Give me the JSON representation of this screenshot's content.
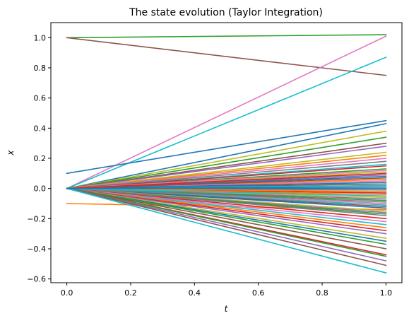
{
  "chart_data": {
    "type": "line",
    "title": "The state evolution (Taylor Integration)",
    "xlabel": "t",
    "ylabel": "x",
    "xlim": [
      -0.05,
      1.05
    ],
    "ylim": [
      -0.625,
      1.1
    ],
    "xticks": [
      {
        "value": 0.0,
        "label": "0.0"
      },
      {
        "value": 0.2,
        "label": "0.2"
      },
      {
        "value": 0.4,
        "label": "0.4"
      },
      {
        "value": 0.6,
        "label": "0.6"
      },
      {
        "value": 0.8,
        "label": "0.8"
      },
      {
        "value": 1.0,
        "label": "1.0"
      }
    ],
    "yticks": [
      {
        "value": -0.6,
        "label": "−0.6"
      },
      {
        "value": -0.4,
        "label": "−0.4"
      },
      {
        "value": -0.2,
        "label": "−0.2"
      },
      {
        "value": 0.0,
        "label": "0.0"
      },
      {
        "value": 0.2,
        "label": "0.2"
      },
      {
        "value": 0.4,
        "label": "0.4"
      },
      {
        "value": 0.6,
        "label": "0.6"
      },
      {
        "value": 0.8,
        "label": "0.8"
      },
      {
        "value": 1.0,
        "label": "1.0"
      }
    ],
    "grid": false,
    "legend": "none",
    "colors": [
      "#1f77b4",
      "#ff7f0e",
      "#2ca02c",
      "#d62728",
      "#9467bd",
      "#8c564b",
      "#e377c2",
      "#7f7f7f",
      "#bcbd22",
      "#17becf"
    ],
    "x": [
      0.0,
      1.0
    ],
    "series": [
      {
        "color": "#2ca02c",
        "values": [
          1.0,
          1.02
        ]
      },
      {
        "color": "#8c564b",
        "values": [
          1.0,
          0.75
        ]
      },
      {
        "color": "#e377c2",
        "values": [
          0.0,
          1.01
        ]
      },
      {
        "color": "#17becf",
        "values": [
          0.0,
          0.87
        ]
      },
      {
        "color": "#1f77b4",
        "values": [
          0.1,
          0.45
        ]
      },
      {
        "color": "#1f77b4",
        "values": [
          0.0,
          0.43
        ]
      },
      {
        "color": "#bcbd22",
        "values": [
          0.0,
          0.38
        ]
      },
      {
        "color": "#2ca02c",
        "values": [
          0.0,
          0.34
        ]
      },
      {
        "color": "#8c564b",
        "values": [
          0.0,
          0.3
        ]
      },
      {
        "color": "#9467bd",
        "values": [
          0.0,
          0.28
        ]
      },
      {
        "color": "#bcbd22",
        "values": [
          0.0,
          0.24
        ]
      },
      {
        "color": "#ff7f0e",
        "values": [
          0.0,
          0.22
        ]
      },
      {
        "color": "#e377c2",
        "values": [
          0.0,
          0.2
        ]
      },
      {
        "color": "#7f7f7f",
        "values": [
          0.0,
          0.18
        ]
      },
      {
        "color": "#17becf",
        "values": [
          0.0,
          0.16
        ]
      },
      {
        "color": "#d62728",
        "values": [
          0.0,
          0.15
        ]
      },
      {
        "color": "#2ca02c",
        "values": [
          0.0,
          0.13
        ]
      },
      {
        "color": "#bcbd22",
        "values": [
          0.0,
          0.11
        ]
      },
      {
        "color": "#9467bd",
        "values": [
          0.0,
          0.09
        ]
      },
      {
        "color": "#1f77b4",
        "values": [
          0.0,
          0.08
        ]
      },
      {
        "color": "#ff7f0e",
        "values": [
          0.0,
          0.06
        ]
      },
      {
        "color": "#e377c2",
        "values": [
          0.0,
          0.05
        ]
      },
      {
        "color": "#8c564b",
        "values": [
          0.0,
          0.03
        ]
      },
      {
        "color": "#17becf",
        "values": [
          0.0,
          0.02
        ]
      },
      {
        "color": "#1f77b4",
        "values": [
          0.0,
          0.01
        ]
      },
      {
        "color": "#2ca02c",
        "values": [
          0.0,
          0.0
        ]
      },
      {
        "color": "#7f7f7f",
        "values": [
          0.0,
          -0.01
        ]
      },
      {
        "color": "#d62728",
        "values": [
          0.0,
          -0.03
        ]
      },
      {
        "color": "#ff7f0e",
        "values": [
          0.0,
          -0.04
        ]
      },
      {
        "color": "#bcbd22",
        "values": [
          0.0,
          -0.06
        ]
      },
      {
        "color": "#9467bd",
        "values": [
          0.0,
          -0.07
        ]
      },
      {
        "color": "#2ca02c",
        "values": [
          0.0,
          -0.08
        ]
      },
      {
        "color": "#e377c2",
        "values": [
          0.0,
          -0.1
        ]
      },
      {
        "color": "#17becf",
        "values": [
          0.0,
          -0.11
        ]
      },
      {
        "color": "#8c564b",
        "values": [
          0.0,
          -0.12
        ]
      },
      {
        "color": "#1f77b4",
        "values": [
          0.0,
          -0.13
        ]
      },
      {
        "color": "#ff7f0e",
        "values": [
          -0.1,
          -0.14
        ]
      },
      {
        "color": "#bcbd22",
        "values": [
          0.0,
          -0.15
        ]
      },
      {
        "color": "#9467bd",
        "values": [
          0.0,
          -0.16
        ]
      },
      {
        "color": "#2ca02c",
        "values": [
          0.0,
          -0.17
        ]
      },
      {
        "color": "#7f7f7f",
        "values": [
          0.0,
          -0.18
        ]
      },
      {
        "color": "#d62728",
        "values": [
          0.0,
          -0.2
        ]
      },
      {
        "color": "#e377c2",
        "values": [
          0.0,
          -0.22
        ]
      },
      {
        "color": "#17becf",
        "values": [
          0.0,
          -0.24
        ]
      },
      {
        "color": "#ff7f0e",
        "values": [
          0.0,
          -0.26
        ]
      },
      {
        "color": "#d62728",
        "values": [
          0.0,
          -0.28
        ]
      },
      {
        "color": "#9467bd",
        "values": [
          0.0,
          -0.3
        ]
      },
      {
        "color": "#bcbd22",
        "values": [
          0.0,
          -0.33
        ]
      },
      {
        "color": "#1f77b4",
        "values": [
          0.0,
          -0.35
        ]
      },
      {
        "color": "#2ca02c",
        "values": [
          0.0,
          -0.37
        ]
      },
      {
        "color": "#8c564b",
        "values": [
          0.0,
          -0.4
        ]
      },
      {
        "color": "#d62728",
        "values": [
          0.0,
          -0.44
        ]
      },
      {
        "color": "#2ca02c",
        "values": [
          0.0,
          -0.45
        ]
      },
      {
        "color": "#9467bd",
        "values": [
          0.0,
          -0.48
        ]
      },
      {
        "color": "#8c564b",
        "values": [
          0.0,
          -0.51
        ]
      },
      {
        "color": "#17becf",
        "values": [
          0.0,
          -0.56
        ]
      },
      {
        "color": "#1f77b4",
        "values": [
          0.0,
          0.04
        ]
      },
      {
        "color": "#ff7f0e",
        "values": [
          0.0,
          -0.02
        ]
      },
      {
        "color": "#e377c2",
        "values": [
          0.0,
          0.12
        ]
      },
      {
        "color": "#7f7f7f",
        "values": [
          0.0,
          -0.09
        ]
      },
      {
        "color": "#8c564b",
        "values": [
          0.0,
          0.07
        ]
      },
      {
        "color": "#17becf",
        "values": [
          0.0,
          -0.05
        ]
      },
      {
        "color": "#d62728",
        "values": [
          0.0,
          0.1
        ]
      },
      {
        "color": "#1f77b4",
        "values": [
          0.0,
          0.0
        ]
      }
    ]
  }
}
